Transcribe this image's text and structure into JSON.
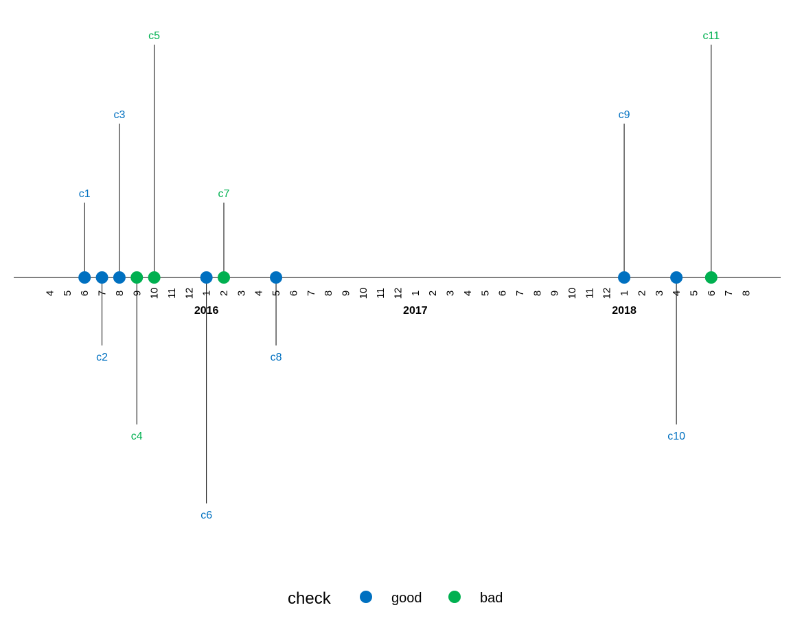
{
  "chart_data": {
    "type": "scatter",
    "subtype": "timeline",
    "x_axis": {
      "start": "2015-04",
      "end": "2018-08",
      "month_ticks": [
        "4",
        "5",
        "6",
        "7",
        "8",
        "9",
        "10",
        "11",
        "12",
        "1",
        "2",
        "3",
        "4",
        "5",
        "6",
        "7",
        "8",
        "9",
        "10",
        "11",
        "12",
        "1",
        "2",
        "3",
        "4",
        "5",
        "6",
        "7",
        "8",
        "9",
        "10",
        "11",
        "12",
        "1",
        "2",
        "3",
        "4",
        "5",
        "6",
        "7",
        "8"
      ],
      "year_labels": [
        {
          "label": "2016",
          "date": "2016-01"
        },
        {
          "label": "2017",
          "date": "2017-01"
        },
        {
          "label": "2018",
          "date": "2018-01"
        }
      ]
    },
    "events": [
      {
        "label": "c1",
        "date": "2015-06",
        "height": 1,
        "check": "good"
      },
      {
        "label": "c2",
        "date": "2015-07",
        "height": -1,
        "check": "good"
      },
      {
        "label": "c3",
        "date": "2015-08",
        "height": 2,
        "check": "good"
      },
      {
        "label": "c4",
        "date": "2015-09",
        "height": -2,
        "check": "bad"
      },
      {
        "label": "c5",
        "date": "2015-10",
        "height": 3,
        "check": "bad"
      },
      {
        "label": "c6",
        "date": "2016-01",
        "height": -3,
        "check": "good"
      },
      {
        "label": "c7",
        "date": "2016-02",
        "height": 1,
        "check": "bad"
      },
      {
        "label": "c8",
        "date": "2016-05",
        "height": -1,
        "check": "good"
      },
      {
        "label": "c9",
        "date": "2018-01",
        "height": 2,
        "check": "good"
      },
      {
        "label": "c10",
        "date": "2018-04",
        "height": -2,
        "check": "good"
      },
      {
        "label": "c11",
        "date": "2018-06",
        "height": 3,
        "check": "bad"
      }
    ],
    "colors": {
      "good": "#0070C0",
      "bad": "#00B050"
    },
    "legend": {
      "title": "check",
      "position": "bottom",
      "items": [
        {
          "key": "good",
          "label": "good"
        },
        {
          "key": "bad",
          "label": "bad"
        }
      ]
    }
  }
}
